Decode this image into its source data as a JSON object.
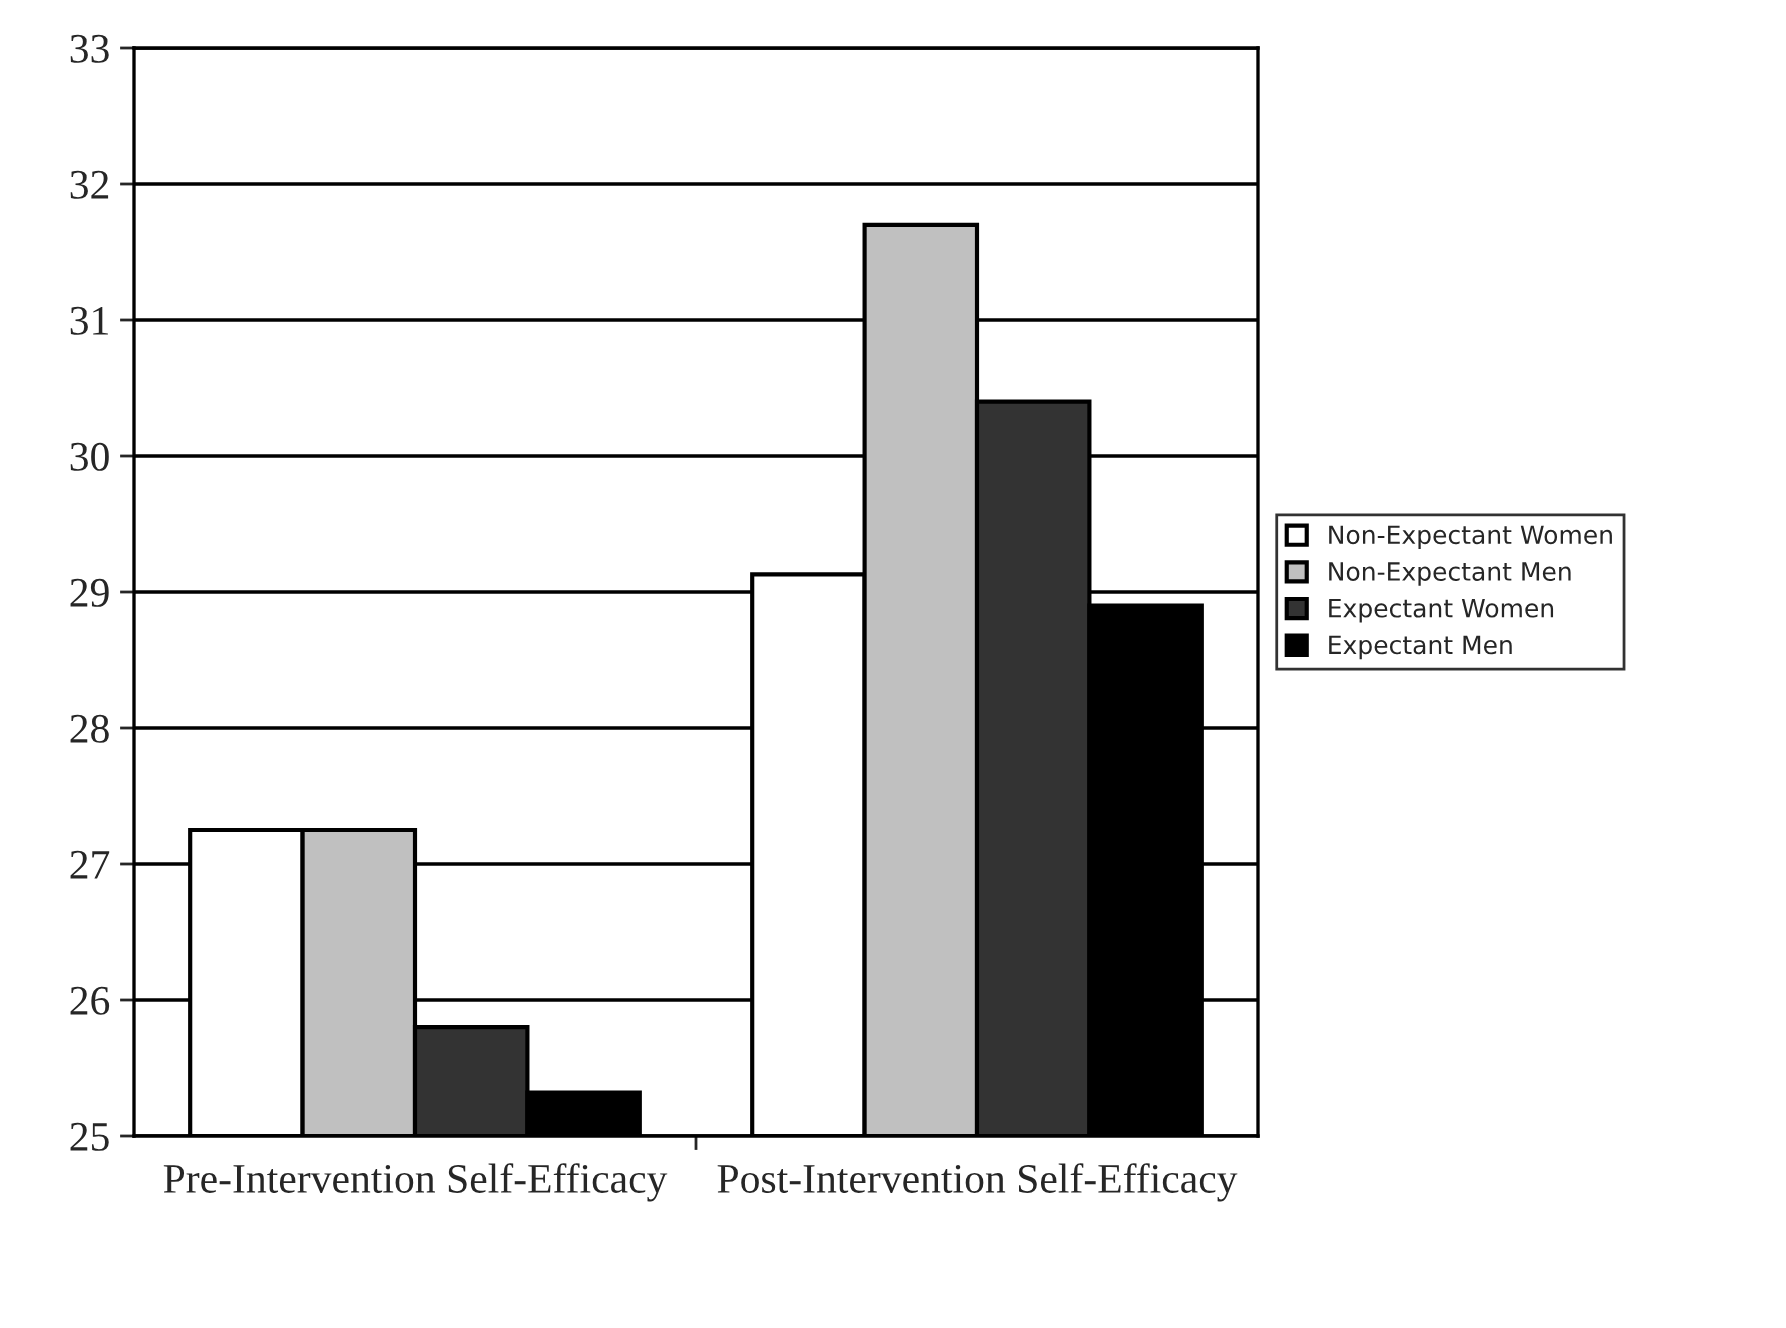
{
  "chart_data": {
    "type": "bar",
    "categories": [
      "Pre-Intervention Self-Efficacy",
      "Post-Intervention Self-Efficacy"
    ],
    "series": [
      {
        "name": "Non-Expectant Women",
        "color": "#ffffff",
        "values": [
          27.25,
          29.13
        ]
      },
      {
        "name": "Non-Expectant Men",
        "color": "#c0c0c0",
        "values": [
          27.25,
          31.7
        ]
      },
      {
        "name": "Expectant Women",
        "color": "#333333",
        "values": [
          25.8,
          30.4
        ]
      },
      {
        "name": "Expectant Men",
        "color": "#000000",
        "values": [
          25.32,
          28.9
        ]
      }
    ],
    "ylim": [
      25,
      33
    ],
    "yticks": [
      25,
      26,
      27,
      28,
      29,
      30,
      31,
      32,
      33
    ],
    "grid": "y",
    "legend": "right"
  }
}
